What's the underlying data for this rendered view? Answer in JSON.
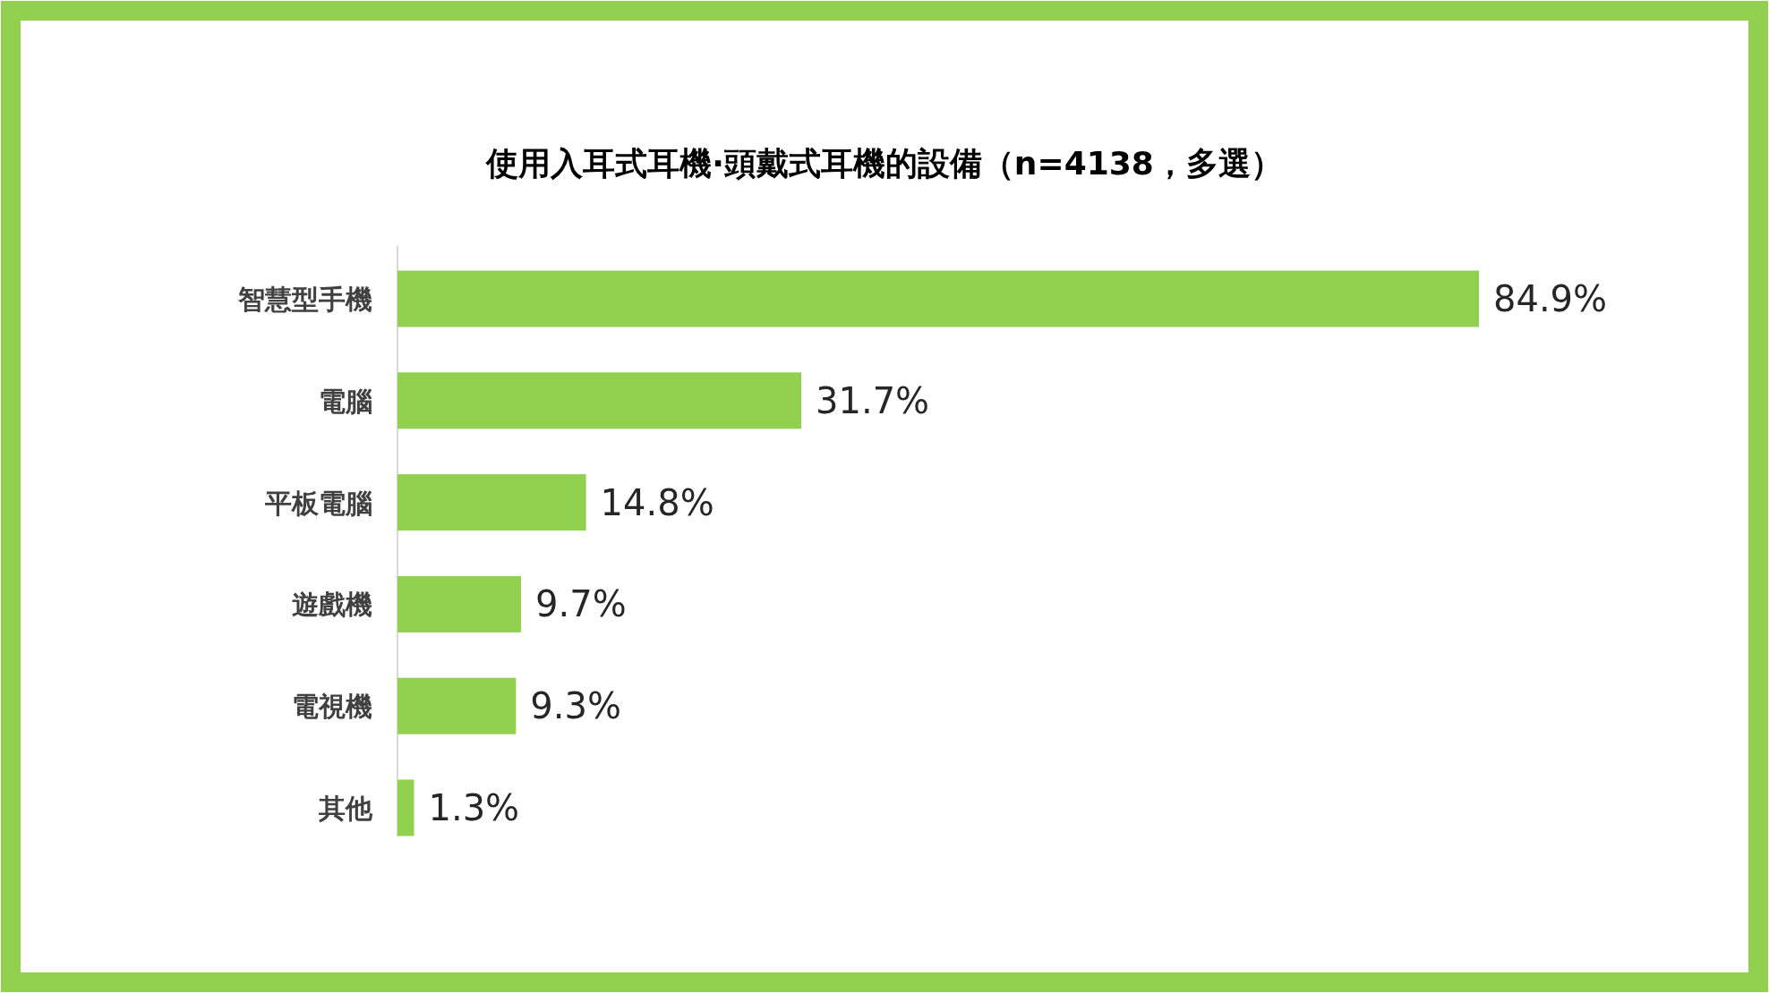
{
  "chart_data": {
    "type": "bar",
    "orientation": "horizontal",
    "title": "使用入耳式耳機·頭戴式耳機的設備（n=4138，多選）",
    "categories": [
      "智慧型手機",
      "電腦",
      "平板電腦",
      "遊戲機",
      "電視機",
      "其他"
    ],
    "values": [
      84.9,
      31.7,
      14.8,
      9.7,
      9.3,
      1.3
    ],
    "value_labels": [
      "84.9%",
      "31.7%",
      "14.8%",
      "9.7%",
      "9.3%",
      "1.3%"
    ],
    "color": "#92d050"
  }
}
